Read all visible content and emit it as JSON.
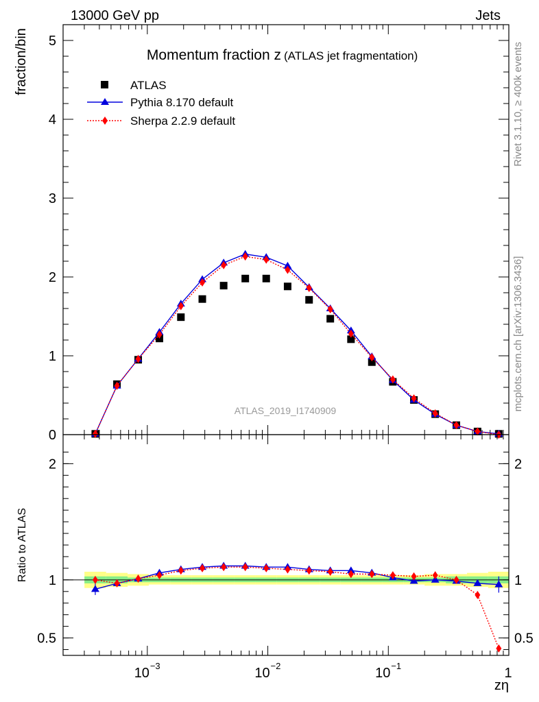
{
  "header": {
    "left": "13000 GeV pp",
    "right": "Jets"
  },
  "side_texts": {
    "rivet": "Rivet 3.1.10, ≥ 400k events",
    "mcplots": "mcplots.cern.ch [arXiv:1306.3436]"
  },
  "chart_data": [
    {
      "type": "scatter",
      "title_main": "Momentum fraction z",
      "title_sub": "(ATLAS jet fragmentation)",
      "ylabel": "fraction/bin",
      "xlabel": "",
      "watermark": "ATLAS_2019_I1740909",
      "x_scale": "log",
      "xlim": [
        0.0002,
        1.0
      ],
      "ylim": [
        0,
        5.2
      ],
      "y_ticks": [
        0,
        1,
        2,
        3,
        4,
        5
      ],
      "legend_position": "top-left",
      "x": [
        0.00037,
        0.00056,
        0.00084,
        0.00126,
        0.0019,
        0.00286,
        0.0043,
        0.0065,
        0.0097,
        0.0146,
        0.022,
        0.033,
        0.049,
        0.073,
        0.109,
        0.163,
        0.245,
        0.367,
        0.55,
        0.825
      ],
      "series": [
        {
          "name": "ATLAS",
          "color": "#000000",
          "style": "square-markers",
          "values": [
            0.01,
            0.64,
            0.95,
            1.22,
            1.49,
            1.72,
            1.89,
            1.98,
            1.98,
            1.88,
            1.71,
            1.47,
            1.21,
            0.92,
            0.67,
            0.44,
            0.26,
            0.12,
            0.04,
            0.01
          ]
        },
        {
          "name": "Pythia 8.170 default",
          "color": "#0000dd",
          "style": "solid-line-triangles",
          "values": [
            0.01,
            0.62,
            0.96,
            1.3,
            1.66,
            1.97,
            2.18,
            2.29,
            2.25,
            2.14,
            1.87,
            1.6,
            1.32,
            0.99,
            0.69,
            0.44,
            0.26,
            0.12,
            0.04,
            0.01
          ]
        },
        {
          "name": "Sherpa 2.2.9 default",
          "color": "#ff0000",
          "style": "dotted-line-diamonds",
          "values": [
            0.01,
            0.62,
            0.96,
            1.27,
            1.63,
            1.93,
            2.15,
            2.26,
            2.22,
            2.09,
            1.86,
            1.59,
            1.28,
            0.98,
            0.7,
            0.46,
            0.27,
            0.12,
            0.04,
            0.0
          ]
        }
      ]
    },
    {
      "type": "line",
      "ylabel": "Ratio to ATLAS",
      "xlabel": "zη",
      "x_scale": "log",
      "xlim": [
        0.0002,
        1.0
      ],
      "ylim": [
        0.35,
        2.25
      ],
      "y_ticks": [
        0.5,
        1,
        2
      ],
      "x_ticks": [
        0.001,
        0.01,
        0.1,
        1
      ],
      "x_tick_labels": [
        "10",
        "10",
        "10",
        "1"
      ],
      "x_tick_exponents": [
        "−3",
        "−2",
        "−1",
        ""
      ],
      "x": [
        0.00037,
        0.00056,
        0.00084,
        0.00126,
        0.0019,
        0.00286,
        0.0043,
        0.0065,
        0.0097,
        0.0146,
        0.022,
        0.033,
        0.049,
        0.073,
        0.109,
        0.163,
        0.245,
        0.367,
        0.55,
        0.825
      ],
      "bands": {
        "inner": [
          0.03,
          0.03,
          0.02,
          0.02,
          0.02,
          0.02,
          0.02,
          0.02,
          0.02,
          0.02,
          0.02,
          0.02,
          0.02,
          0.02,
          0.02,
          0.02,
          0.02,
          0.03,
          0.03,
          0.03
        ],
        "outer": [
          0.07,
          0.06,
          0.05,
          0.04,
          0.04,
          0.04,
          0.04,
          0.04,
          0.04,
          0.04,
          0.04,
          0.04,
          0.04,
          0.04,
          0.04,
          0.04,
          0.05,
          0.05,
          0.06,
          0.07
        ],
        "inner_color": "#88ee88",
        "outer_color": "#ffff88"
      },
      "series": [
        {
          "name": "Pythia 8.170 default",
          "color": "#0000dd",
          "style": "solid-line-triangles",
          "values": [
            0.92,
            0.97,
            1.01,
            1.06,
            1.09,
            1.11,
            1.12,
            1.12,
            1.11,
            1.11,
            1.09,
            1.08,
            1.08,
            1.06,
            1.02,
            0.99,
            1.0,
            0.99,
            0.97,
            0.96
          ],
          "errors": [
            0.05,
            0.01,
            0.0,
            0.0,
            0.0,
            0.0,
            0.0,
            0.0,
            0.0,
            0.0,
            0.0,
            0.0,
            0.0,
            0.0,
            0.0,
            0.01,
            0.01,
            0.01,
            0.02,
            0.07
          ]
        },
        {
          "name": "Sherpa 2.2.9 default",
          "color": "#ff0000",
          "style": "dotted-line-diamonds",
          "values": [
            1.0,
            0.97,
            1.01,
            1.04,
            1.08,
            1.1,
            1.11,
            1.11,
            1.1,
            1.09,
            1.08,
            1.07,
            1.05,
            1.05,
            1.04,
            1.03,
            1.04,
            1.0,
            0.87,
            0.41
          ],
          "errors": [
            0.0,
            0.0,
            0.0,
            0.0,
            0.0,
            0.0,
            0.0,
            0.0,
            0.0,
            0.0,
            0.0,
            0.0,
            0.0,
            0.0,
            0.0,
            0.0,
            0.0,
            0.0,
            0.0,
            0.0
          ]
        }
      ]
    }
  ]
}
